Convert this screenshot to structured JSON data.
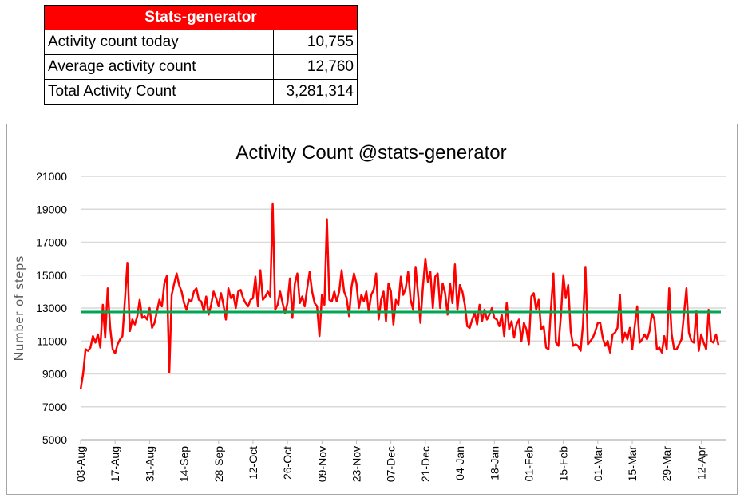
{
  "stats_table": {
    "title": "Stats-generator",
    "rows": [
      {
        "label": "Activity count today",
        "value": "10,755"
      },
      {
        "label": "Average activity count",
        "value": "12,760"
      },
      {
        "label": "Total Activity Count",
        "value": "3,281,314"
      }
    ]
  },
  "chart_data": {
    "type": "line",
    "title": "Activity Count @stats-generator",
    "xlabel": "",
    "ylabel": "Number of steps",
    "ylim": [
      5000,
      21000
    ],
    "yticks": [
      "5000",
      "7000",
      "9000",
      "11000",
      "13000",
      "15000",
      "17000",
      "19000",
      "21000"
    ],
    "xticks": [
      "03-Aug",
      "17-Aug",
      "31-Aug",
      "14-Sep",
      "28-Sep",
      "12-Oct",
      "26-Oct",
      "09-Nov",
      "23-Nov",
      "07-Dec",
      "21-Dec",
      "04-Jan",
      "18-Jan",
      "01-Feb",
      "15-Feb",
      "01-Mar",
      "15-Mar",
      "29-Mar",
      "12-Apr"
    ],
    "x_tick_interval_days": 14,
    "x_start": "03-Aug",
    "x_step_days": 1,
    "grid": true,
    "series": [
      {
        "color": "#ff0000",
        "values": [
          8050,
          9000,
          10500,
          10400,
          10600,
          11300,
          10900,
          11400,
          10600,
          13200,
          11200,
          14200,
          11800,
          10500,
          10250,
          10800,
          11100,
          11300,
          13500,
          15750,
          11600,
          12300,
          12000,
          12500,
          13500,
          12400,
          12500,
          12300,
          13000,
          11800,
          12100,
          12800,
          13500,
          13100,
          14500,
          14950,
          9100,
          13800,
          14500,
          15100,
          14400,
          14000,
          13300,
          12900,
          13500,
          13400,
          14000,
          14200,
          13500,
          13400,
          12800,
          13700,
          12600,
          13200,
          14000,
          13600,
          13100,
          13900,
          13200,
          12300,
          14200,
          13600,
          13800,
          13000,
          14000,
          14100,
          13600,
          13300,
          13100,
          13500,
          13600,
          14900,
          13100,
          15300,
          13500,
          13700,
          14000,
          13700,
          19350,
          12900,
          13200,
          14000,
          13300,
          12700,
          13300,
          14800,
          12400,
          14500,
          15100,
          13300,
          13700,
          13100,
          14200,
          15200,
          14000,
          13300,
          13100,
          11300,
          13800,
          13200,
          18400,
          13500,
          13400,
          14000,
          13400,
          14000,
          15300,
          14000,
          13600,
          12500,
          14300,
          15100,
          14500,
          13000,
          13800,
          13400,
          14000,
          12800,
          13800,
          14100,
          15100,
          12300,
          13500,
          14000,
          12200,
          14500,
          14000,
          12000,
          13500,
          13200,
          14900,
          13800,
          14200,
          15200,
          13500,
          12900,
          15500,
          13900,
          12100,
          14300,
          16000,
          14600,
          15200,
          13000,
          14900,
          15100,
          13000,
          14500,
          13900,
          12600,
          14500,
          13300,
          15650,
          12900,
          14400,
          14000,
          13200,
          11900,
          11800,
          12300,
          12700,
          12000,
          13200,
          12200,
          12900,
          12300,
          12600,
          13000,
          12400,
          12300,
          11900,
          12600,
          11300,
          13300,
          11700,
          12200,
          11200,
          12000,
          12300,
          11000,
          12100,
          11700,
          10800,
          13700,
          13900,
          12900,
          13500,
          11700,
          11900,
          10600,
          10500,
          13000,
          15100,
          10900,
          10700,
          12500,
          15000,
          13600,
          14400,
          11600,
          10700,
          10800,
          10700,
          10400,
          12000,
          15500,
          10800,
          11000,
          11200,
          11600,
          12100,
          12100,
          11200,
          10700,
          11000,
          10300,
          11400,
          11500,
          11800,
          13800,
          10900,
          11500,
          11100,
          11800,
          10500,
          11900,
          13100,
          10900,
          11100,
          11400,
          11100,
          11600,
          12700,
          12300,
          10500,
          10600,
          10300,
          11300,
          10500,
          14200,
          11400,
          10500,
          10500,
          10800,
          11100,
          12600,
          14200,
          11500,
          11000,
          10900,
          12800,
          10400,
          11400,
          10900,
          10500,
          12900,
          11000,
          10900,
          11400,
          10755
        ]
      },
      {
        "color": "#00a651",
        "constant": 12760
      }
    ]
  }
}
